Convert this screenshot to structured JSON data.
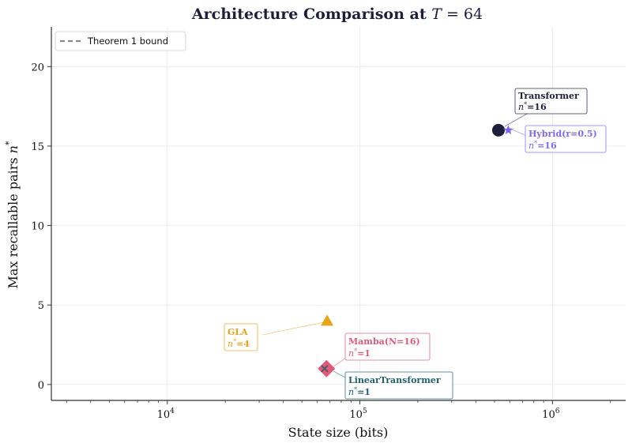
{
  "chart_data": {
    "type": "scatter",
    "title_text": "Architecture Comparison at ",
    "title_math_var": "T",
    "title_math_eq": " = 64",
    "xlabel": "State size (bits)",
    "ylabel_text": "Max recallable pairs ",
    "ylabel_math": "n",
    "ylabel_sup": "*",
    "x_scale": "log",
    "x_range": [
      2500,
      2400000
    ],
    "y_range": [
      -1,
      22.5
    ],
    "x_ticks": [
      {
        "value": 10000,
        "base": "10",
        "exp": "4"
      },
      {
        "value": 100000,
        "base": "10",
        "exp": "5"
      },
      {
        "value": 1000000,
        "base": "10",
        "exp": "6"
      }
    ],
    "y_ticks": [
      {
        "value": 0,
        "label": "0"
      },
      {
        "value": 5,
        "label": "5"
      },
      {
        "value": 10,
        "label": "10"
      },
      {
        "value": 15,
        "label": "15"
      },
      {
        "value": 20,
        "label": "20"
      }
    ],
    "grid": true,
    "legend": {
      "placement": "top-left",
      "entries": [
        {
          "label": "Theorem 1 bound",
          "style": "dashed",
          "color": "#888888"
        }
      ]
    },
    "points": [
      {
        "name": "Transformer",
        "x": 524288,
        "y": 16,
        "marker": "circle",
        "color": "#1b1f3b",
        "label_line1": "Transformer",
        "label_n": "n",
        "label_sup": "*",
        "label_val": "=16"
      },
      {
        "name": "Hybrid(r=0.5)",
        "x": 589824,
        "y": 16,
        "marker": "star",
        "color": "#7b68ee",
        "label_line1": "Hybrid(r=0.5)",
        "label_n": "n",
        "label_sup": "*",
        "label_val": "=16"
      },
      {
        "name": "GLA",
        "x": 67584,
        "y": 4,
        "marker": "triangle",
        "color": "#e8a317",
        "label_line1": "GLA",
        "label_n": "n",
        "label_sup": "*",
        "label_val": "=4"
      },
      {
        "name": "Mamba(N=16)",
        "x": 67072,
        "y": 1,
        "marker": "diamond",
        "color": "#e05a78",
        "label_line1": "Mamba(N=16)",
        "label_n": "n",
        "label_sup": "*",
        "label_val": "=1"
      },
      {
        "name": "LinearTransformer",
        "x": 65536,
        "y": 1,
        "marker": "x",
        "color": "#1f5f6f",
        "label_line1": "LinearTransformer",
        "label_n": "n",
        "label_sup": "*",
        "label_val": "=1"
      }
    ]
  }
}
